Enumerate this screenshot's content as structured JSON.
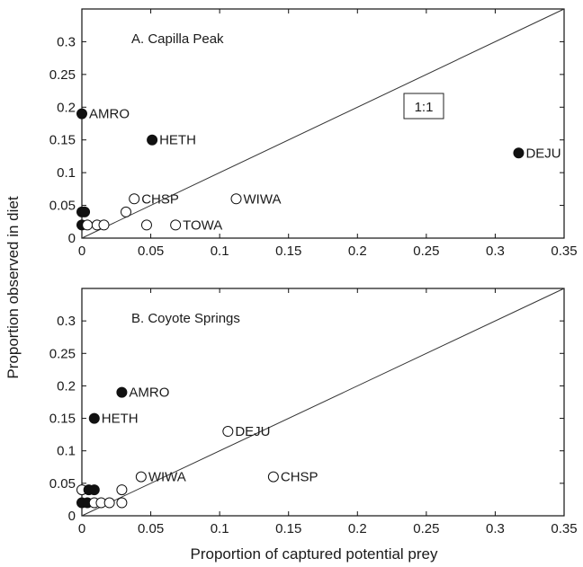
{
  "chart_data": [
    {
      "type": "scatter",
      "title": "A. Capilla Peak",
      "xlabel": "",
      "ylabel": "",
      "xlim": [
        0,
        0.35
      ],
      "ylim": [
        0,
        0.35
      ],
      "x_ticks": [
        "0",
        "0.05",
        "0.1",
        "0.15",
        "0.2",
        "0.25",
        "0.3",
        "0.35"
      ],
      "y_ticks": [
        "0",
        "0.05",
        "0.1",
        "0.15",
        "0.2",
        "0.25",
        "0.3"
      ],
      "grid": false,
      "reference_line": {
        "label": "1:1",
        "slope": 1,
        "intercept": 0
      },
      "points": [
        {
          "x": 0.0,
          "y": 0.19,
          "filled": true,
          "label": "AMRO"
        },
        {
          "x": 0.051,
          "y": 0.15,
          "filled": true,
          "label": "HETH"
        },
        {
          "x": 0.317,
          "y": 0.13,
          "filled": true,
          "label": "DEJU"
        },
        {
          "x": 0.038,
          "y": 0.06,
          "filled": false,
          "label": "CHSP"
        },
        {
          "x": 0.112,
          "y": 0.06,
          "filled": false,
          "label": "WIWA"
        },
        {
          "x": 0.068,
          "y": 0.02,
          "filled": false,
          "label": "TOWA"
        },
        {
          "x": 0.0,
          "y": 0.04,
          "filled": true,
          "label": ""
        },
        {
          "x": 0.002,
          "y": 0.04,
          "filled": true,
          "label": ""
        },
        {
          "x": 0.0,
          "y": 0.02,
          "filled": true,
          "label": ""
        },
        {
          "x": 0.004,
          "y": 0.02,
          "filled": false,
          "label": ""
        },
        {
          "x": 0.011,
          "y": 0.02,
          "filled": false,
          "label": ""
        },
        {
          "x": 0.016,
          "y": 0.02,
          "filled": false,
          "label": ""
        },
        {
          "x": 0.032,
          "y": 0.04,
          "filled": false,
          "label": ""
        },
        {
          "x": 0.047,
          "y": 0.02,
          "filled": false,
          "label": ""
        }
      ]
    },
    {
      "type": "scatter",
      "title": "B. Coyote Springs",
      "xlabel": "Proportion of captured potential prey",
      "ylabel": "",
      "xlim": [
        0,
        0.35
      ],
      "ylim": [
        0,
        0.35
      ],
      "x_ticks": [
        "0",
        "0.05",
        "0.1",
        "0.15",
        "0.2",
        "0.25",
        "0.3",
        "0.35"
      ],
      "y_ticks": [
        "0",
        "0.05",
        "0.1",
        "0.15",
        "0.2",
        "0.25",
        "0.3"
      ],
      "grid": false,
      "reference_line": {
        "label": "",
        "slope": 1,
        "intercept": 0
      },
      "points": [
        {
          "x": 0.029,
          "y": 0.19,
          "filled": true,
          "label": "AMRO"
        },
        {
          "x": 0.009,
          "y": 0.15,
          "filled": true,
          "label": "HETH"
        },
        {
          "x": 0.106,
          "y": 0.13,
          "filled": false,
          "label": "DEJU"
        },
        {
          "x": 0.043,
          "y": 0.06,
          "filled": false,
          "label": "WIWA"
        },
        {
          "x": 0.139,
          "y": 0.06,
          "filled": false,
          "label": "CHSP"
        },
        {
          "x": 0.0,
          "y": 0.04,
          "filled": false,
          "label": ""
        },
        {
          "x": 0.005,
          "y": 0.04,
          "filled": true,
          "label": ""
        },
        {
          "x": 0.009,
          "y": 0.04,
          "filled": true,
          "label": ""
        },
        {
          "x": 0.0,
          "y": 0.02,
          "filled": true,
          "label": ""
        },
        {
          "x": 0.004,
          "y": 0.02,
          "filled": true,
          "label": ""
        },
        {
          "x": 0.009,
          "y": 0.02,
          "filled": false,
          "label": ""
        },
        {
          "x": 0.014,
          "y": 0.02,
          "filled": false,
          "label": ""
        },
        {
          "x": 0.02,
          "y": 0.02,
          "filled": false,
          "label": ""
        },
        {
          "x": 0.029,
          "y": 0.02,
          "filled": false,
          "label": ""
        },
        {
          "x": 0.029,
          "y": 0.04,
          "filled": false,
          "label": ""
        }
      ]
    }
  ],
  "shared_ylabel": "Proportion observed in diet"
}
